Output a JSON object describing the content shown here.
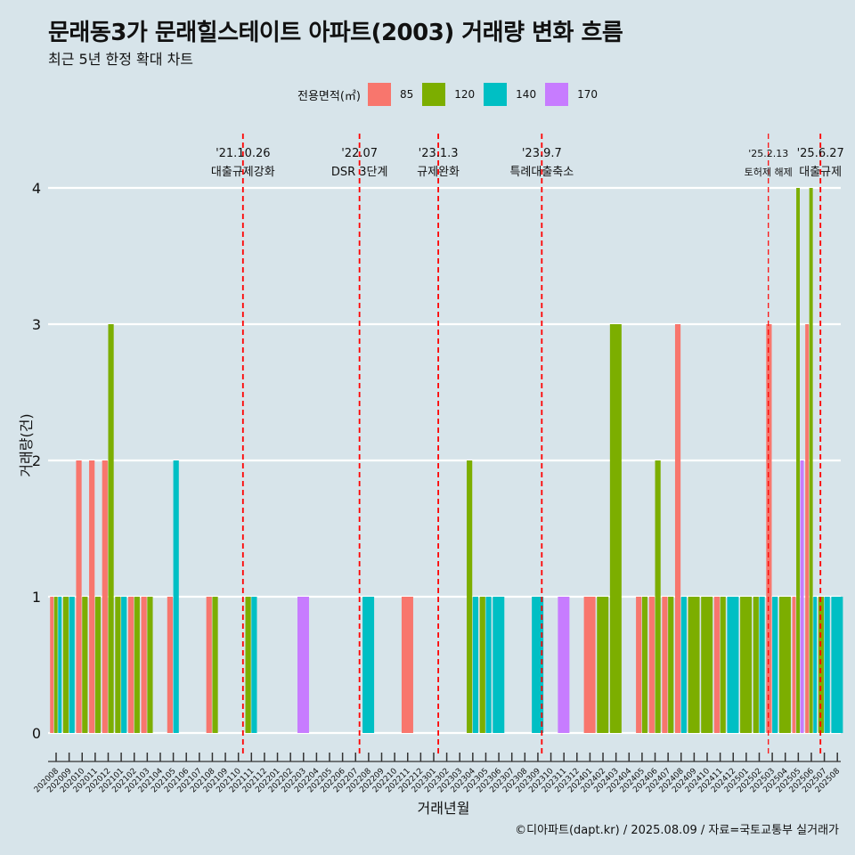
{
  "title": "문래동3가 문래힐스테이트 아파트(2003) 거래량 변화 흐름",
  "subtitle": "최근 5년 한정 확대 차트",
  "caption": "©디아파트(dapt.kr) / 2025.08.09 / 자료=국토교통부 실거래가",
  "legend": {
    "title": "전용면적(㎡)",
    "items": [
      {
        "label": "85",
        "color": "#f8766d"
      },
      {
        "label": "120",
        "color": "#7cae00"
      },
      {
        "label": "140",
        "color": "#00bfc4"
      },
      {
        "label": "170",
        "color": "#c77cff"
      }
    ]
  },
  "chart_data": {
    "type": "bar",
    "xlabel": "거래년월",
    "ylabel": "거래량(건)",
    "ylim": [
      0,
      4
    ],
    "yticks": [
      0,
      1,
      2,
      3,
      4
    ],
    "grid": true,
    "legend_position": "top",
    "categories": [
      "202008",
      "202009",
      "202010",
      "202011",
      "202012",
      "202101",
      "202102",
      "202103",
      "202104",
      "202105",
      "202106",
      "202107",
      "202108",
      "202109",
      "202110",
      "202111",
      "202112",
      "202201",
      "202202",
      "202203",
      "202204",
      "202205",
      "202206",
      "202207",
      "202208",
      "202209",
      "202210",
      "202211",
      "202212",
      "202301",
      "202302",
      "202303",
      "202304",
      "202305",
      "202306",
      "202307",
      "202308",
      "202309",
      "202310",
      "202311",
      "202312",
      "202401",
      "202402",
      "202403",
      "202404",
      "202405",
      "202406",
      "202407",
      "202408",
      "202409",
      "202410",
      "202411",
      "202412",
      "202501",
      "202502",
      "202503",
      "202504",
      "202505",
      "202506",
      "202507",
      "202508"
    ],
    "bars": [
      {
        "month": "202008",
        "area": "85",
        "value": 1
      },
      {
        "month": "202008",
        "area": "120",
        "value": 1
      },
      {
        "month": "202008",
        "area": "140",
        "value": 1
      },
      {
        "month": "202009",
        "area": "120",
        "value": 1
      },
      {
        "month": "202009",
        "area": "140",
        "value": 1
      },
      {
        "month": "202010",
        "area": "85",
        "value": 2
      },
      {
        "month": "202010",
        "area": "120",
        "value": 1
      },
      {
        "month": "202011",
        "area": "85",
        "value": 2
      },
      {
        "month": "202011",
        "area": "120",
        "value": 1
      },
      {
        "month": "202012",
        "area": "85",
        "value": 2
      },
      {
        "month": "202012",
        "area": "120",
        "value": 3
      },
      {
        "month": "202101",
        "area": "120",
        "value": 1
      },
      {
        "month": "202101",
        "area": "140",
        "value": 1
      },
      {
        "month": "202102",
        "area": "85",
        "value": 1
      },
      {
        "month": "202102",
        "area": "120",
        "value": 1
      },
      {
        "month": "202103",
        "area": "85",
        "value": 1
      },
      {
        "month": "202103",
        "area": "120",
        "value": 1
      },
      {
        "month": "202105",
        "area": "85",
        "value": 1
      },
      {
        "month": "202105",
        "area": "140",
        "value": 2
      },
      {
        "month": "202108",
        "area": "85",
        "value": 1
      },
      {
        "month": "202108",
        "area": "120",
        "value": 1
      },
      {
        "month": "202111",
        "area": "120",
        "value": 1
      },
      {
        "month": "202111",
        "area": "140",
        "value": 1
      },
      {
        "month": "202203",
        "area": "170",
        "value": 1
      },
      {
        "month": "202208",
        "area": "140",
        "value": 1
      },
      {
        "month": "202211",
        "area": "85",
        "value": 1
      },
      {
        "month": "202304",
        "area": "120",
        "value": 2
      },
      {
        "month": "202304",
        "area": "140",
        "value": 1
      },
      {
        "month": "202305",
        "area": "120",
        "value": 1
      },
      {
        "month": "202305",
        "area": "140",
        "value": 1
      },
      {
        "month": "202306",
        "area": "140",
        "value": 1
      },
      {
        "month": "202309",
        "area": "140",
        "value": 1
      },
      {
        "month": "202311",
        "area": "170",
        "value": 1
      },
      {
        "month": "202401",
        "area": "85",
        "value": 1
      },
      {
        "month": "202402",
        "area": "120",
        "value": 1
      },
      {
        "month": "202403",
        "area": "120",
        "value": 3
      },
      {
        "month": "202405",
        "area": "85",
        "value": 1
      },
      {
        "month": "202405",
        "area": "120",
        "value": 1
      },
      {
        "month": "202406",
        "area": "85",
        "value": 1
      },
      {
        "month": "202406",
        "area": "120",
        "value": 2
      },
      {
        "month": "202407",
        "area": "85",
        "value": 1
      },
      {
        "month": "202407",
        "area": "120",
        "value": 1
      },
      {
        "month": "202408",
        "area": "85",
        "value": 3
      },
      {
        "month": "202408",
        "area": "140",
        "value": 1
      },
      {
        "month": "202409",
        "area": "120",
        "value": 1
      },
      {
        "month": "202410",
        "area": "120",
        "value": 1
      },
      {
        "month": "202411",
        "area": "85",
        "value": 1
      },
      {
        "month": "202411",
        "area": "120",
        "value": 1
      },
      {
        "month": "202412",
        "area": "140",
        "value": 1
      },
      {
        "month": "202501",
        "area": "120",
        "value": 1
      },
      {
        "month": "202502",
        "area": "120",
        "value": 1
      },
      {
        "month": "202502",
        "area": "140",
        "value": 1
      },
      {
        "month": "202503",
        "area": "85",
        "value": 3
      },
      {
        "month": "202503",
        "area": "140",
        "value": 1
      },
      {
        "month": "202504",
        "area": "120",
        "value": 1
      },
      {
        "month": "202505",
        "area": "85",
        "value": 1
      },
      {
        "month": "202505",
        "area": "120",
        "value": 4
      },
      {
        "month": "202505",
        "area": "170",
        "value": 2
      },
      {
        "month": "202506",
        "area": "85",
        "value": 3
      },
      {
        "month": "202506",
        "area": "120",
        "value": 4
      },
      {
        "month": "202506",
        "area": "140",
        "value": 1
      },
      {
        "month": "202507",
        "area": "120",
        "value": 1
      },
      {
        "month": "202507",
        "area": "140",
        "value": 1
      },
      {
        "month": "202508",
        "area": "140",
        "value": 1
      }
    ],
    "annotations": [
      {
        "month_position": 14.35,
        "date": "'21.10.26",
        "label": "대출규제강화",
        "small": false
      },
      {
        "month_position": 23.3,
        "date": "'22.07",
        "label": "DSR 3단계",
        "small": false
      },
      {
        "month_position": 29.35,
        "date": "'23.1.3",
        "label": "규제완화",
        "small": false
      },
      {
        "month_position": 37.3,
        "date": "'23.9.7",
        "label": "특례대출축소",
        "small": false
      },
      {
        "month_position": 54.7,
        "date": "'25.2.13",
        "label": "토허제 해제",
        "small": true
      },
      {
        "month_position": 58.7,
        "date": "'25.6.27",
        "label": "대출규제",
        "small": false
      }
    ]
  }
}
